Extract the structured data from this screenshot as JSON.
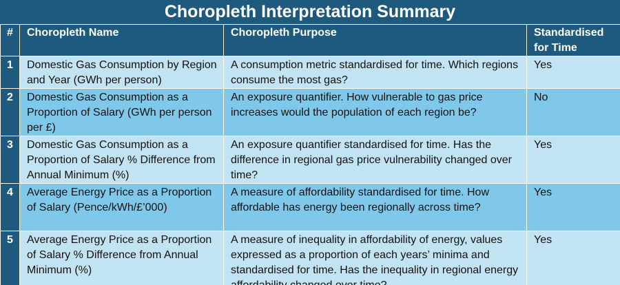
{
  "title": "Choropleth Interpretation Summary",
  "headers": {
    "num": "#",
    "name": "Choropleth Name",
    "purpose": "Choropleth Purpose",
    "standardised": "Standardised for Time"
  },
  "rows": [
    {
      "num": "1",
      "name": "Domestic Gas Consumption by Region and Year (GWh per person)",
      "purpose": "A consumption metric standardised for time. Which regions consume the most gas?",
      "standardised": "Yes"
    },
    {
      "num": "2",
      "name": "Domestic Gas Consumption as a Proportion of Salary (GWh per person per £)",
      "purpose": "An exposure quantifier. How vulnerable to gas price increases would the population of each region be?",
      "standardised": "No"
    },
    {
      "num": "3",
      "name": "Domestic Gas Consumption as a Proportion of Salary % Difference from Annual Minimum (%)",
      "purpose": "An exposure quantifier standardised for time. Has the difference in regional gas price vulnerability changed over time?",
      "standardised": "Yes"
    },
    {
      "num": "4",
      "name": "Average Energy Price as a Proportion of Salary (Pence/kWh/£’000)",
      "purpose": "A measure of affordability standardised for time. How affordable has energy been regionally across time?",
      "standardised": "Yes"
    },
    {
      "num": "5",
      "name": "Average Energy Price as a Proportion of Salary % Difference from Annual Minimum (%)",
      "purpose": "A measure of inequality in affordability of energy, values expressed as a proportion of each years’ minima and standardised for time. Has the inequality in regional energy affordability changed over time?",
      "standardised": "Yes"
    }
  ],
  "colors": {
    "header_bg": "#1e5a7d",
    "row_light": "#c2e3f3",
    "row_dark": "#80c8e9",
    "text_header": "#ffffff"
  }
}
